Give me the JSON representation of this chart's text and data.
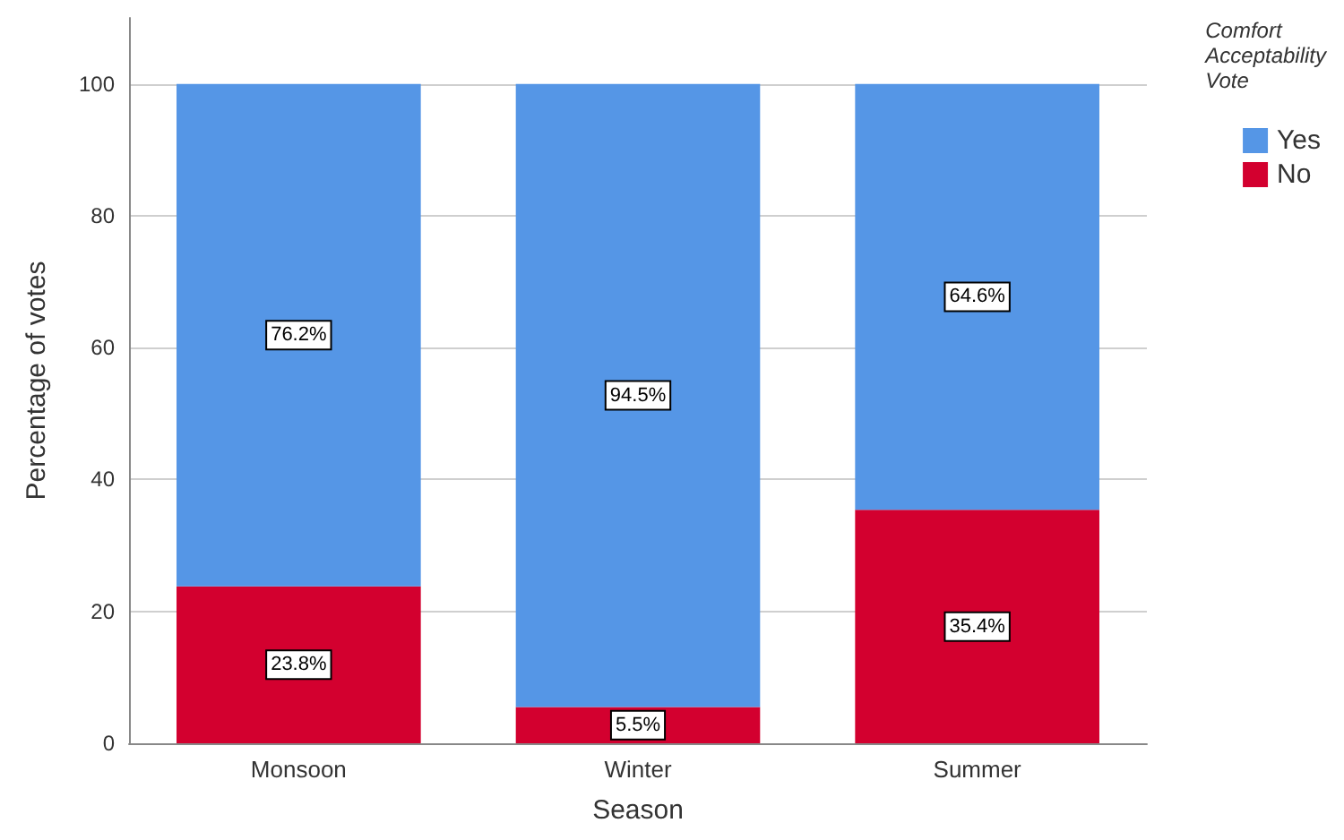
{
  "chart_data": {
    "type": "bar",
    "stacked": true,
    "xlabel": "Season",
    "ylabel": "Percentage of votes",
    "legend_title": "Comfort\nAcceptability\nVote",
    "categories": [
      "Monsoon",
      "Winter",
      "Summer"
    ],
    "series": [
      {
        "name": "No",
        "color": "#d3002f",
        "values": [
          23.8,
          5.5,
          35.4
        ],
        "value_labels": [
          "23.8%",
          "5.5%",
          "35.4%"
        ]
      },
      {
        "name": "Yes",
        "color": "#5596e6",
        "values": [
          76.2,
          94.5,
          64.6
        ],
        "value_labels": [
          "76.2%",
          "94.5%",
          "64.6%"
        ]
      }
    ],
    "ylim": [
      0,
      110
    ],
    "yticks": [
      0,
      20,
      40,
      60,
      80,
      100
    ],
    "grid": "y",
    "legend": "top right"
  }
}
